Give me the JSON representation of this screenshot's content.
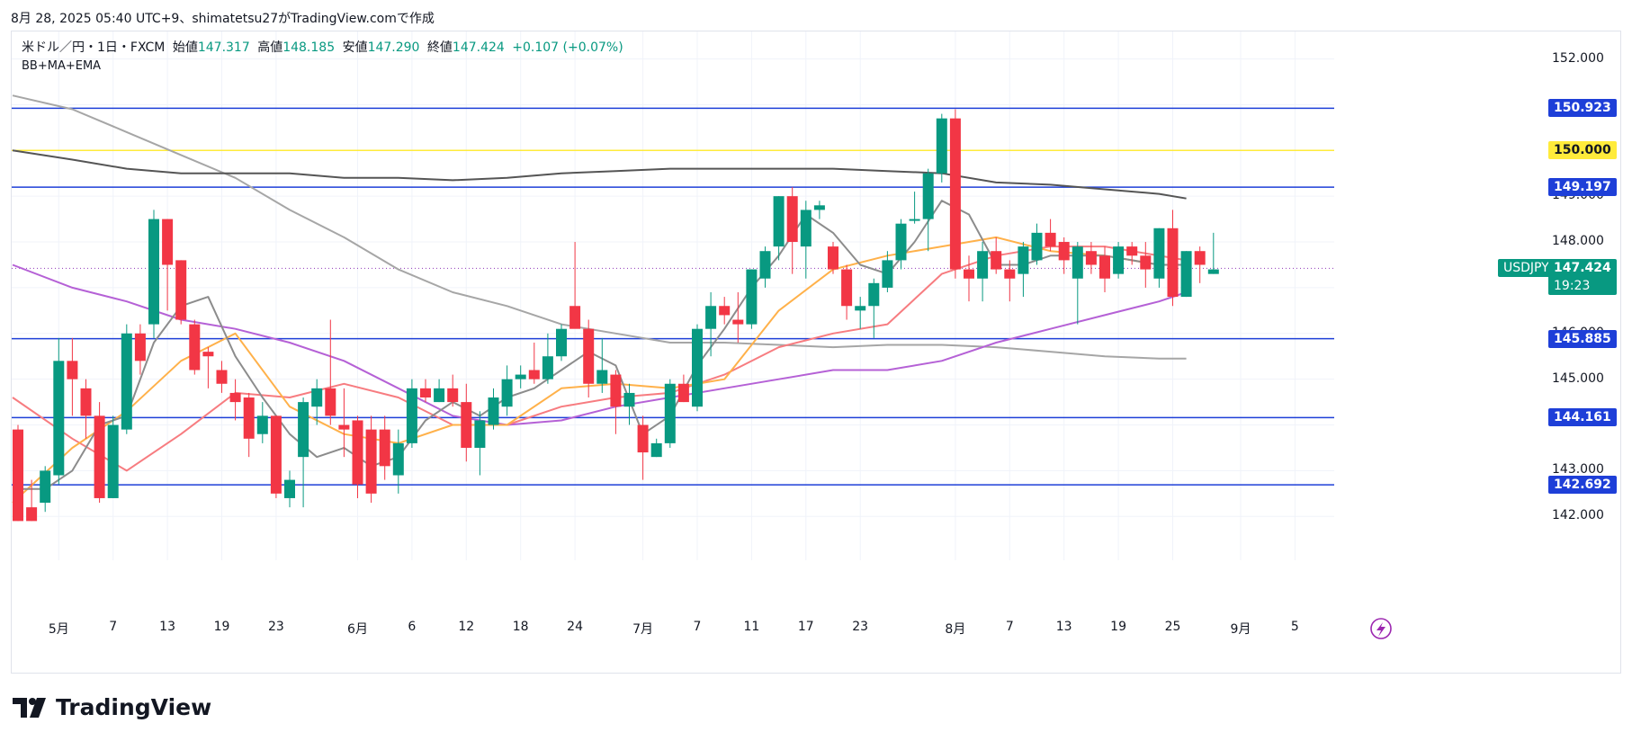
{
  "header": {
    "text": "8月 28, 2025 05:40 UTC+9、shimatetsu27がTradingView.comで作成"
  },
  "legend": {
    "symbol": "米ドル／円・1日・FXCM",
    "open_label": "始値",
    "open": "147.317",
    "high_label": "高値",
    "high": "148.185",
    "low_label": "安値",
    "low": "147.290",
    "close_label": "終値",
    "close": "147.424",
    "change": "+0.107 (+0.07%)",
    "indicator": "BB+MA+EMA"
  },
  "brand": {
    "name": "TradingView"
  },
  "colors": {
    "up": "#089981",
    "down": "#f23645",
    "level": "#1e3fd8",
    "yellow": "#ffeb3b",
    "ma_dark": "#555555",
    "ma_gray": "#a6a6a6",
    "ema_purple": "#b561d6",
    "bb_orange": "#ffb14a",
    "bb_red": "#f77c80",
    "ma_short": "#8c8c8c"
  },
  "chart_data": {
    "type": "candlestick",
    "ylim": [
      141.2,
      152.6
    ],
    "y_ticks": [
      "152.000",
      "149.000",
      "148.000",
      "147.000",
      "146.000",
      "145.000",
      "143.000",
      "142.000"
    ],
    "x_ticks": [
      {
        "label": "5月",
        "idx": 3
      },
      {
        "label": "7",
        "idx": 7
      },
      {
        "label": "13",
        "idx": 11
      },
      {
        "label": "19",
        "idx": 15
      },
      {
        "label": "23",
        "idx": 19
      },
      {
        "label": "6月",
        "idx": 25
      },
      {
        "label": "6",
        "idx": 29
      },
      {
        "label": "12",
        "idx": 33
      },
      {
        "label": "18",
        "idx": 37
      },
      {
        "label": "24",
        "idx": 41
      },
      {
        "label": "7月",
        "idx": 46
      },
      {
        "label": "7",
        "idx": 50
      },
      {
        "label": "11",
        "idx": 54
      },
      {
        "label": "17",
        "idx": 58
      },
      {
        "label": "23",
        "idx": 62
      },
      {
        "label": "8月",
        "idx": 69
      },
      {
        "label": "7",
        "idx": 73
      },
      {
        "label": "13",
        "idx": 77
      },
      {
        "label": "19",
        "idx": 81
      },
      {
        "label": "25",
        "idx": 85
      },
      {
        "label": "9月",
        "idx": 90
      },
      {
        "label": "5",
        "idx": 94
      }
    ],
    "horizontal_levels": [
      {
        "value": 150.923,
        "label": "150.923",
        "color": "#1e3fd8"
      },
      {
        "value": 150.0,
        "label": "150.000",
        "color": "#ffeb3b"
      },
      {
        "value": 149.197,
        "label": "149.197",
        "color": "#1e3fd8"
      },
      {
        "value": 145.885,
        "label": "145.885",
        "color": "#1e3fd8"
      },
      {
        "value": 144.161,
        "label": "144.161",
        "color": "#1e3fd8"
      },
      {
        "value": 142.692,
        "label": "142.692",
        "color": "#1e3fd8"
      }
    ],
    "current_price": {
      "symbol": "USDJPY",
      "value": 147.424,
      "label": "147.424",
      "countdown": "19:23"
    },
    "candles": [
      [
        143.9,
        144.0,
        141.9,
        141.9
      ],
      [
        142.2,
        142.8,
        141.9,
        141.9
      ],
      [
        142.3,
        143.1,
        142.1,
        143.0
      ],
      [
        142.9,
        145.9,
        142.7,
        145.4
      ],
      [
        145.4,
        145.9,
        144.2,
        145.0
      ],
      [
        144.8,
        145.0,
        143.7,
        144.2
      ],
      [
        144.2,
        144.5,
        142.3,
        142.4
      ],
      [
        142.4,
        144.2,
        142.4,
        144.0
      ],
      [
        143.9,
        146.2,
        143.8,
        146.0
      ],
      [
        146.0,
        146.2,
        145.1,
        145.4
      ],
      [
        146.2,
        148.7,
        145.9,
        148.5
      ],
      [
        148.5,
        148.5,
        146.5,
        147.5
      ],
      [
        147.6,
        147.6,
        146.2,
        146.3
      ],
      [
        146.2,
        146.3,
        145.1,
        145.2
      ],
      [
        145.6,
        145.7,
        144.8,
        145.5
      ],
      [
        145.2,
        145.4,
        144.7,
        144.9
      ],
      [
        144.7,
        145.0,
        144.1,
        144.5
      ],
      [
        144.6,
        144.7,
        143.3,
        143.7
      ],
      [
        143.8,
        144.5,
        143.6,
        144.2
      ],
      [
        144.2,
        144.2,
        142.4,
        142.5
      ],
      [
        142.4,
        143.0,
        142.2,
        142.8
      ],
      [
        143.3,
        144.6,
        142.2,
        144.5
      ],
      [
        144.4,
        145.0,
        144.0,
        144.8
      ],
      [
        144.8,
        146.3,
        144.0,
        144.2
      ],
      [
        144.0,
        144.8,
        143.3,
        143.9
      ],
      [
        144.1,
        144.2,
        142.4,
        142.7
      ],
      [
        143.9,
        144.2,
        142.3,
        142.5
      ],
      [
        143.9,
        144.2,
        142.8,
        143.1
      ],
      [
        142.9,
        143.9,
        142.5,
        143.6
      ],
      [
        143.6,
        145.0,
        143.5,
        144.8
      ],
      [
        144.8,
        145.0,
        144.5,
        144.6
      ],
      [
        144.5,
        145.0,
        144.5,
        144.8
      ],
      [
        144.8,
        145.1,
        144.4,
        144.5
      ],
      [
        144.5,
        144.9,
        143.2,
        143.5
      ],
      [
        143.5,
        144.3,
        142.9,
        144.1
      ],
      [
        144.0,
        144.8,
        143.9,
        144.6
      ],
      [
        144.4,
        145.3,
        144.2,
        145.0
      ],
      [
        145.0,
        145.3,
        144.8,
        145.1
      ],
      [
        145.2,
        145.8,
        144.9,
        145.0
      ],
      [
        145.0,
        146.0,
        144.9,
        145.5
      ],
      [
        145.5,
        146.2,
        145.4,
        146.1
      ],
      [
        146.6,
        148.0,
        146.2,
        146.1
      ],
      [
        146.1,
        146.3,
        144.6,
        144.9
      ],
      [
        144.9,
        145.9,
        144.7,
        145.2
      ],
      [
        145.1,
        145.2,
        143.8,
        144.4
      ],
      [
        144.4,
        144.9,
        144.0,
        144.7
      ],
      [
        144.0,
        144.2,
        142.8,
        143.4
      ],
      [
        143.3,
        143.7,
        143.3,
        143.6
      ],
      [
        143.6,
        145.0,
        143.5,
        144.9
      ],
      [
        144.9,
        145.1,
        144.5,
        144.5
      ],
      [
        144.4,
        146.2,
        144.3,
        146.1
      ],
      [
        146.1,
        146.9,
        145.5,
        146.6
      ],
      [
        146.6,
        146.8,
        146.2,
        146.4
      ],
      [
        146.3,
        146.9,
        145.8,
        146.2
      ],
      [
        146.2,
        147.4,
        146.1,
        147.4
      ],
      [
        147.2,
        147.9,
        147.0,
        147.8
      ],
      [
        147.9,
        149.0,
        147.6,
        149.0
      ],
      [
        149.0,
        149.2,
        147.3,
        148.0
      ],
      [
        147.9,
        148.9,
        147.2,
        148.7
      ],
      [
        148.7,
        148.9,
        148.5,
        148.8
      ],
      [
        147.9,
        148.0,
        147.3,
        147.4
      ],
      [
        147.4,
        147.5,
        146.3,
        146.6
      ],
      [
        146.5,
        146.8,
        146.1,
        146.6
      ],
      [
        146.6,
        147.2,
        145.9,
        147.1
      ],
      [
        147.0,
        147.8,
        146.9,
        147.6
      ],
      [
        147.6,
        148.5,
        147.4,
        148.4
      ],
      [
        148.5,
        149.1,
        148.4,
        148.5
      ],
      [
        148.5,
        149.6,
        147.8,
        149.5
      ],
      [
        149.5,
        150.8,
        149.3,
        150.7
      ],
      [
        150.7,
        150.9,
        147.2,
        147.4
      ],
      [
        147.4,
        147.7,
        146.7,
        147.2
      ],
      [
        147.2,
        148.0,
        146.7,
        147.8
      ],
      [
        147.8,
        148.1,
        147.3,
        147.4
      ],
      [
        147.4,
        147.6,
        146.7,
        147.2
      ],
      [
        147.3,
        148.0,
        146.8,
        147.9
      ],
      [
        147.6,
        148.4,
        147.5,
        148.2
      ],
      [
        148.2,
        148.5,
        147.8,
        147.9
      ],
      [
        148.0,
        148.1,
        147.3,
        147.6
      ],
      [
        147.2,
        148.0,
        146.2,
        147.9
      ],
      [
        147.8,
        148.0,
        147.3,
        147.5
      ],
      [
        147.7,
        147.9,
        146.9,
        147.2
      ],
      [
        147.3,
        148.0,
        147.2,
        147.9
      ],
      [
        147.9,
        148.0,
        147.5,
        147.7
      ],
      [
        147.7,
        148.0,
        147.0,
        147.4
      ],
      [
        147.2,
        148.3,
        147.0,
        148.3
      ],
      [
        148.3,
        148.7,
        146.6,
        146.8
      ],
      [
        146.8,
        147.8,
        146.8,
        147.8
      ],
      [
        147.8,
        147.9,
        147.1,
        147.5
      ],
      [
        147.3,
        148.2,
        147.3,
        147.4
      ]
    ],
    "lines": [
      {
        "color": "#a6a6a6",
        "points": [
          [
            -0.4,
            151.2
          ],
          [
            4,
            150.9
          ],
          [
            8,
            150.4
          ],
          [
            12,
            149.9
          ],
          [
            16,
            149.4
          ],
          [
            20,
            148.7
          ],
          [
            24,
            148.1
          ],
          [
            28,
            147.4
          ],
          [
            32,
            146.9
          ],
          [
            36,
            146.6
          ],
          [
            40,
            146.2
          ],
          [
            44,
            146.0
          ],
          [
            48,
            145.8
          ],
          [
            52,
            145.8
          ],
          [
            56,
            145.75
          ],
          [
            60,
            145.7
          ],
          [
            64,
            145.75
          ],
          [
            68,
            145.75
          ],
          [
            72,
            145.7
          ],
          [
            76,
            145.6
          ],
          [
            80,
            145.5
          ],
          [
            84,
            145.45
          ],
          [
            86,
            145.45
          ]
        ]
      },
      {
        "color": "#555555",
        "points": [
          [
            -0.4,
            150.0
          ],
          [
            4,
            149.8
          ],
          [
            8,
            149.6
          ],
          [
            12,
            149.5
          ],
          [
            16,
            149.5
          ],
          [
            20,
            149.5
          ],
          [
            24,
            149.4
          ],
          [
            28,
            149.4
          ],
          [
            32,
            149.35
          ],
          [
            36,
            149.4
          ],
          [
            40,
            149.5
          ],
          [
            44,
            149.55
          ],
          [
            48,
            149.6
          ],
          [
            52,
            149.6
          ],
          [
            56,
            149.6
          ],
          [
            60,
            149.6
          ],
          [
            64,
            149.55
          ],
          [
            68,
            149.5
          ],
          [
            72,
            149.3
          ],
          [
            76,
            149.25
          ],
          [
            80,
            149.15
          ],
          [
            84,
            149.05
          ],
          [
            86,
            148.95
          ]
        ]
      },
      {
        "color": "#b561d6",
        "points": [
          [
            -0.4,
            147.5
          ],
          [
            4,
            147.0
          ],
          [
            8,
            146.7
          ],
          [
            12,
            146.3
          ],
          [
            16,
            146.1
          ],
          [
            20,
            145.8
          ],
          [
            24,
            145.4
          ],
          [
            28,
            144.8
          ],
          [
            32,
            144.2
          ],
          [
            36,
            144.0
          ],
          [
            40,
            144.1
          ],
          [
            44,
            144.4
          ],
          [
            48,
            144.6
          ],
          [
            52,
            144.8
          ],
          [
            56,
            145.0
          ],
          [
            60,
            145.2
          ],
          [
            64,
            145.2
          ],
          [
            68,
            145.4
          ],
          [
            72,
            145.8
          ],
          [
            76,
            146.1
          ],
          [
            80,
            146.4
          ],
          [
            84,
            146.7
          ],
          [
            86,
            146.9
          ]
        ]
      },
      {
        "color": "#f77c80",
        "points": [
          [
            -0.4,
            144.6
          ],
          [
            4,
            143.7
          ],
          [
            8,
            143.0
          ],
          [
            12,
            143.8
          ],
          [
            16,
            144.7
          ],
          [
            20,
            144.6
          ],
          [
            24,
            144.9
          ],
          [
            28,
            144.6
          ],
          [
            32,
            144.0
          ],
          [
            36,
            144.0
          ],
          [
            40,
            144.4
          ],
          [
            44,
            144.6
          ],
          [
            48,
            144.7
          ],
          [
            52,
            145.1
          ],
          [
            56,
            145.7
          ],
          [
            60,
            146.0
          ],
          [
            64,
            146.2
          ],
          [
            68,
            147.3
          ],
          [
            72,
            147.7
          ],
          [
            76,
            147.9
          ],
          [
            80,
            147.9
          ],
          [
            84,
            147.7
          ],
          [
            86,
            147.6
          ]
        ]
      },
      {
        "color": "#ffb14a",
        "points": [
          [
            -0.4,
            142.3
          ],
          [
            4,
            143.5
          ],
          [
            8,
            144.3
          ],
          [
            12,
            145.4
          ],
          [
            16,
            146.0
          ],
          [
            20,
            144.4
          ],
          [
            24,
            143.8
          ],
          [
            28,
            143.6
          ],
          [
            32,
            144.0
          ],
          [
            36,
            144.0
          ],
          [
            40,
            144.8
          ],
          [
            44,
            144.9
          ],
          [
            48,
            144.8
          ],
          [
            52,
            145.0
          ],
          [
            56,
            146.5
          ],
          [
            60,
            147.4
          ],
          [
            64,
            147.7
          ],
          [
            68,
            147.9
          ],
          [
            72,
            148.1
          ],
          [
            76,
            147.8
          ],
          [
            80,
            147.7
          ],
          [
            84,
            147.5
          ],
          [
            86,
            147.5
          ]
        ]
      },
      {
        "color": "#8c8c8c",
        "points": [
          [
            0,
            142.6
          ],
          [
            2,
            142.6
          ],
          [
            4,
            143.0
          ],
          [
            6,
            144.0
          ],
          [
            8,
            144.2
          ],
          [
            10,
            145.8
          ],
          [
            12,
            146.6
          ],
          [
            14,
            146.8
          ],
          [
            16,
            145.5
          ],
          [
            18,
            144.6
          ],
          [
            20,
            143.8
          ],
          [
            22,
            143.3
          ],
          [
            24,
            143.5
          ],
          [
            26,
            143.1
          ],
          [
            28,
            143.3
          ],
          [
            30,
            144.1
          ],
          [
            32,
            144.5
          ],
          [
            34,
            144.2
          ],
          [
            36,
            144.6
          ],
          [
            38,
            144.8
          ],
          [
            40,
            145.2
          ],
          [
            42,
            145.6
          ],
          [
            44,
            145.3
          ],
          [
            46,
            143.8
          ],
          [
            48,
            144.2
          ],
          [
            50,
            145.3
          ],
          [
            52,
            146.1
          ],
          [
            54,
            147.0
          ],
          [
            56,
            147.7
          ],
          [
            58,
            148.6
          ],
          [
            60,
            148.2
          ],
          [
            62,
            147.5
          ],
          [
            64,
            147.3
          ],
          [
            66,
            148.0
          ],
          [
            68,
            148.9
          ],
          [
            70,
            148.6
          ],
          [
            72,
            147.5
          ],
          [
            74,
            147.5
          ],
          [
            76,
            147.7
          ],
          [
            78,
            147.7
          ],
          [
            80,
            147.7
          ],
          [
            82,
            147.6
          ],
          [
            84,
            147.5
          ],
          [
            86,
            147.5
          ]
        ]
      }
    ]
  }
}
